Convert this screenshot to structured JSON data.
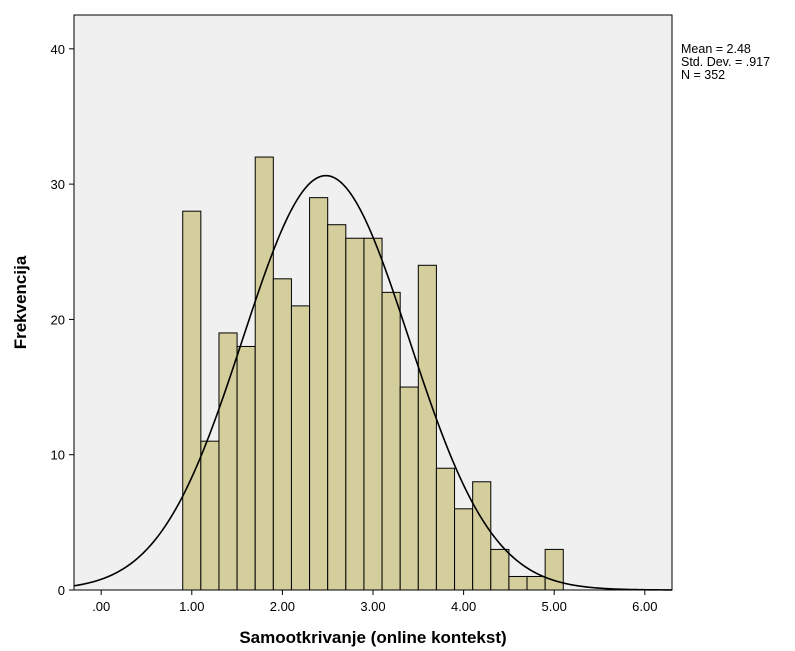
{
  "chart_data": {
    "type": "bar",
    "title": "",
    "xlabel": "Samootkrivanje (online kontekst)",
    "ylabel": "Frekvencija",
    "xlim": [
      -0.3,
      6.3
    ],
    "ylim": [
      0,
      42.5
    ],
    "x_ticks": [
      ".00",
      "1.00",
      "2.00",
      "3.00",
      "4.00",
      "5.00",
      "6.00"
    ],
    "x_tick_values": [
      0,
      1,
      2,
      3,
      4,
      5,
      6
    ],
    "y_ticks": [
      "0",
      "10",
      "20",
      "30",
      "40"
    ],
    "y_tick_values": [
      0,
      10,
      20,
      30,
      40
    ],
    "bin_width": 0.2,
    "bins": [
      {
        "start": 0.9,
        "value": 28
      },
      {
        "start": 1.1,
        "value": 11
      },
      {
        "start": 1.3,
        "value": 19
      },
      {
        "start": 1.5,
        "value": 18
      },
      {
        "start": 1.7,
        "value": 32
      },
      {
        "start": 1.9,
        "value": 23
      },
      {
        "start": 2.1,
        "value": 21
      },
      {
        "start": 2.3,
        "value": 29
      },
      {
        "start": 2.5,
        "value": 27
      },
      {
        "start": 2.7,
        "value": 26
      },
      {
        "start": 2.9,
        "value": 26
      },
      {
        "start": 3.1,
        "value": 22
      },
      {
        "start": 3.3,
        "value": 15
      },
      {
        "start": 3.5,
        "value": 24
      },
      {
        "start": 3.7,
        "value": 9
      },
      {
        "start": 3.9,
        "value": 6
      },
      {
        "start": 4.1,
        "value": 8
      },
      {
        "start": 4.3,
        "value": 3
      },
      {
        "start": 4.5,
        "value": 1
      },
      {
        "start": 4.7,
        "value": 1
      },
      {
        "start": 4.9,
        "value": 3
      }
    ],
    "normal_curve": {
      "mean": 2.48,
      "sd": 0.917,
      "n": 352
    },
    "stats": [
      "Mean = 2.48",
      "Std. Dev. = .917",
      "N = 352"
    ],
    "grid": false,
    "legend": "none",
    "colors": {
      "plot_background": "#f0f0f0",
      "bar_fill": "#d4cd9c",
      "bar_stroke": "#000000",
      "curve": "#000000"
    }
  }
}
